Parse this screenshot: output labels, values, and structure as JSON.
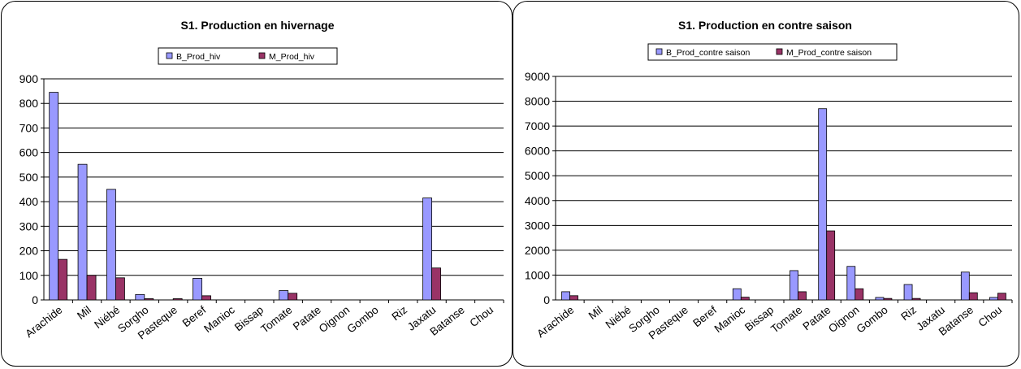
{
  "colors": {
    "B": "#9999FF",
    "M": "#993366"
  },
  "chart_data": [
    {
      "type": "bar",
      "title": "S1. Production en hivernage",
      "legend_position": "top",
      "grid": true,
      "ylim": [
        0,
        900
      ],
      "yticks": [
        0,
        100,
        200,
        300,
        400,
        500,
        600,
        700,
        800,
        900
      ],
      "categories": [
        "Arachide",
        "Mil",
        "Niébé",
        "Sorgho",
        "Pasteque",
        "Beref",
        "Manioc",
        "Bissap",
        "Tomate",
        "Patate",
        "Oignon",
        "Gombo",
        "Riz",
        "Jaxatu",
        "Batanse",
        "Chou"
      ],
      "series": [
        {
          "name": "B_Prod_hiv",
          "values": [
            845,
            552,
            450,
            22,
            0,
            88,
            0,
            0,
            38,
            0,
            0,
            0,
            0,
            415,
            0,
            0
          ]
        },
        {
          "name": "M_Prod_hiv",
          "values": [
            165,
            100,
            90,
            5,
            5,
            17,
            0,
            0,
            27,
            0,
            0,
            0,
            0,
            130,
            0,
            0
          ]
        }
      ]
    },
    {
      "type": "bar",
      "title": "S1. Production en contre saison",
      "legend_position": "top",
      "grid": true,
      "ylim": [
        0,
        9000
      ],
      "yticks": [
        0,
        1000,
        2000,
        3000,
        4000,
        5000,
        6000,
        7000,
        8000,
        9000
      ],
      "categories": [
        "Arachide",
        "Mil",
        "Niébé",
        "Sorgho",
        "Pasteque",
        "Beref",
        "Manioc",
        "Bissap",
        "Tomate",
        "Patate",
        "Oignon",
        "Gombo",
        "Riz",
        "Jaxatu",
        "Batanse",
        "Chou"
      ],
      "series": [
        {
          "name": "B_Prod_contre saison",
          "values": [
            330,
            0,
            0,
            0,
            0,
            0,
            450,
            0,
            1180,
            7700,
            1350,
            100,
            620,
            0,
            1120,
            100
          ]
        },
        {
          "name": "M_Prod_contre saison",
          "values": [
            170,
            0,
            0,
            0,
            0,
            0,
            110,
            0,
            330,
            2780,
            450,
            60,
            60,
            0,
            290,
            270
          ]
        }
      ]
    }
  ]
}
